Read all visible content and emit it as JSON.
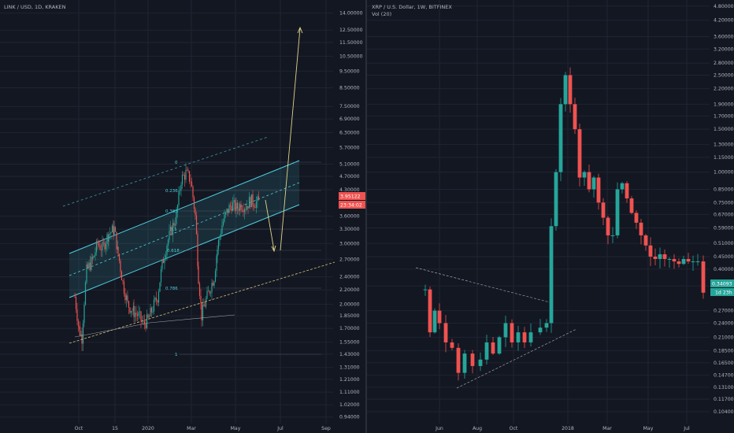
{
  "colors": {
    "background": "#131722",
    "grid": "#1f2433",
    "axis_text": "#b2b5be",
    "up": "#26a69a",
    "down": "#ef5350",
    "channel": "#4dd0e1",
    "trend": "#d4c17a",
    "projection": "#e0d58a",
    "fib": "#4dd0e1"
  },
  "left": {
    "title": "LINK / USD, 1D, KRAKEN",
    "price_tag": "3.95122",
    "time_tag": "23:34:02",
    "fib_labels": [
      "0",
      "0.236",
      "0.382",
      "0.5",
      "0.618",
      "0.786",
      "1"
    ],
    "chart_data": {
      "type": "candlestick",
      "symbol": "LINK / USD",
      "interval": "1D",
      "exchange": "KRAKEN",
      "y_scale": "log",
      "ylim": [
        0.9,
        14.5
      ],
      "yticks": [
        "14.00000",
        "12.50000",
        "11.50000",
        "10.50000",
        "9.50000",
        "8.50000",
        "7.50000",
        "6.90000",
        "6.30000",
        "5.70000",
        "5.10000",
        "4.70000",
        "4.30000",
        "3.60000",
        "3.30000",
        "3.00000",
        "2.70000",
        "2.40000",
        "2.20000",
        "2.00000",
        "1.85000",
        "1.70000",
        "1.55000",
        "1.43000",
        "1.31000",
        "1.21000",
        "1.11000",
        "1.02000",
        "0.94000"
      ],
      "xticks": [
        "Oct",
        "15",
        "2020",
        "Mar",
        "May",
        "Jul",
        "Sep"
      ],
      "last_price": 3.95122,
      "projection": {
        "low_target": 2.75,
        "high_target": 12.0
      }
    }
  },
  "right": {
    "title": "XRP / U.S. Dollar, 1W, BITFINEX",
    "subtitle": "Vol (20)",
    "price_tag": "0.34093",
    "time_tag": "1d 23h",
    "chart_data": {
      "type": "candlestick",
      "symbol": "XRP / U.S. Dollar",
      "interval": "1W",
      "exchange": "BITFINEX",
      "y_scale": "log",
      "ylim": [
        0.095,
        4.9
      ],
      "yticks": [
        "4.80000",
        "4.20000",
        "3.60000",
        "3.20000",
        "2.80000",
        "2.50000",
        "2.20000",
        "1.90000",
        "1.70000",
        "1.50000",
        "1.30000",
        "1.15000",
        "1.00000",
        "0.85000",
        "0.75000",
        "0.67000",
        "0.59000",
        "0.51000",
        "0.45000",
        "0.40000",
        "0.34093",
        "0.27000",
        "0.24000",
        "0.21000",
        "0.18500",
        "0.16500",
        "0.14700",
        "0.13100",
        "0.11700",
        "0.10400"
      ],
      "xticks": [
        "Jun",
        "Aug",
        "Oct",
        "2018",
        "Mar",
        "May",
        "Jul"
      ],
      "last_price": 0.34093
    }
  }
}
